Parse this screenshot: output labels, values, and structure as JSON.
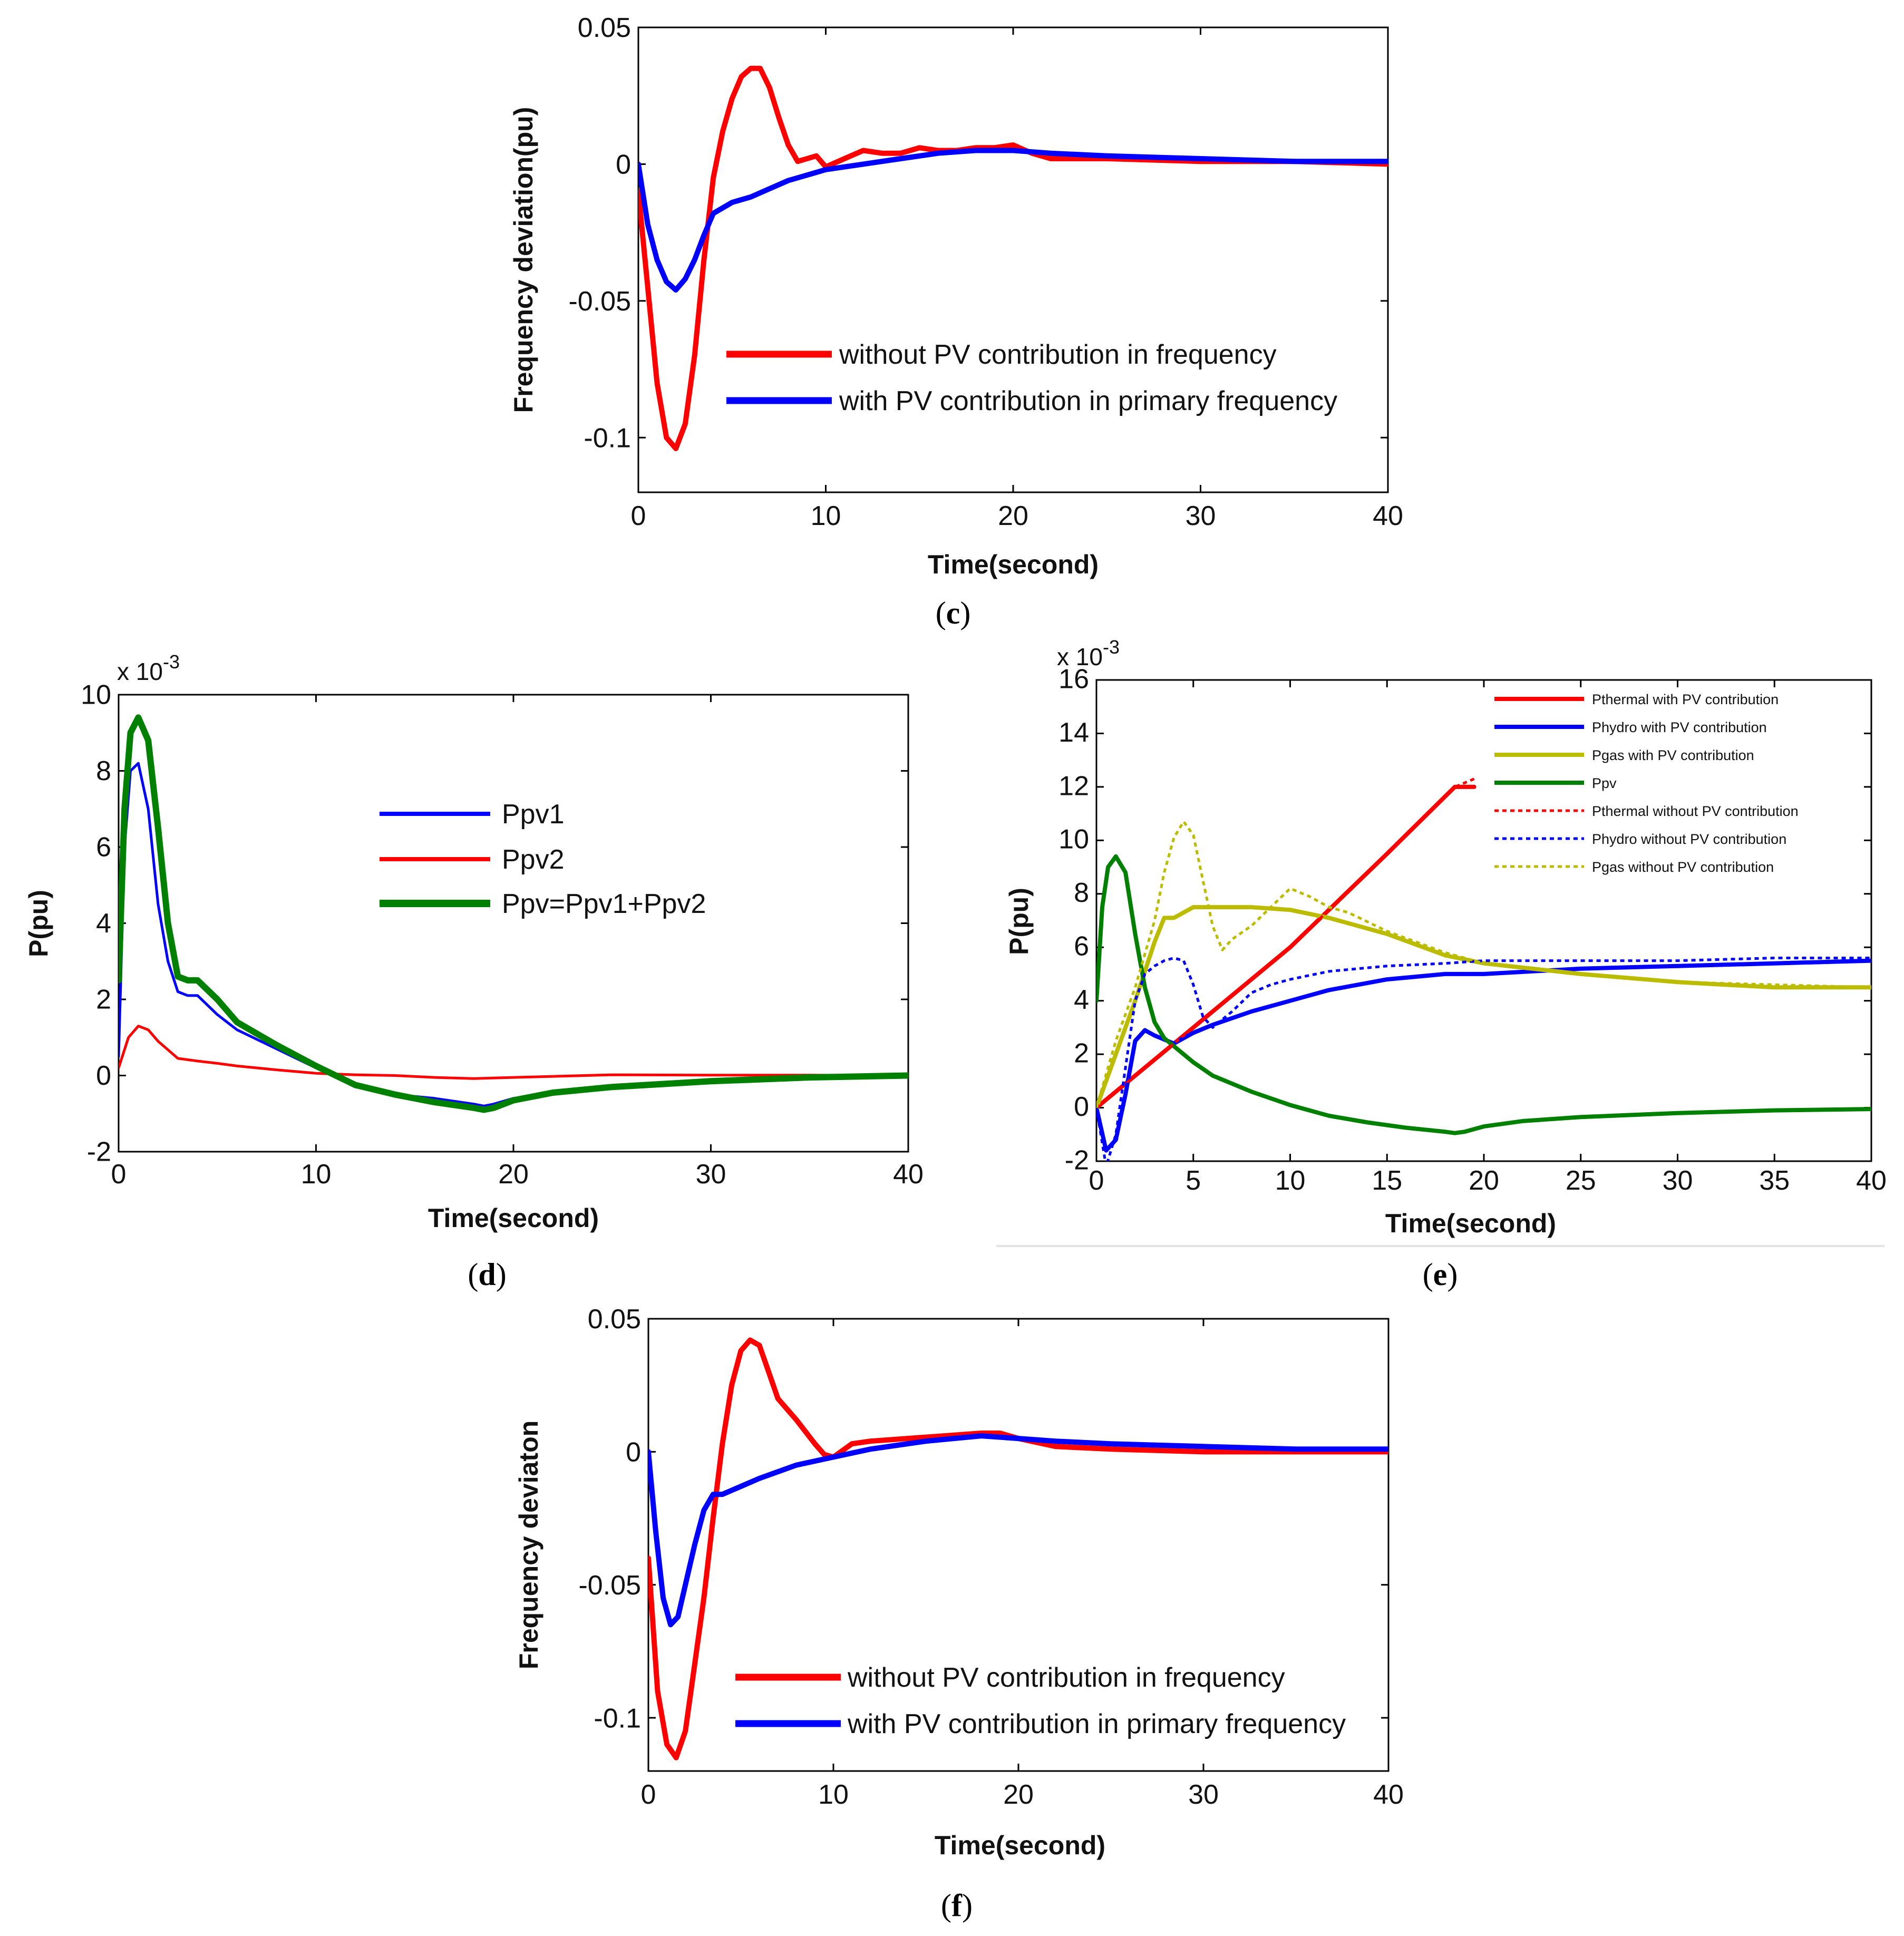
{
  "chart_data": [
    {
      "id": "c",
      "type": "line",
      "caption": "c",
      "xlabel": "Time(second)",
      "ylabel": "Frequency deviation(pu)",
      "xlim": [
        0,
        40
      ],
      "ylim": [
        -0.12,
        0.05
      ],
      "xticks": [
        0,
        10,
        20,
        30,
        40
      ],
      "xtick_labels": [
        "0",
        "10",
        "20",
        "30",
        "40"
      ],
      "yticks": [
        -0.1,
        -0.05,
        0,
        0.05
      ],
      "ytick_labels": [
        "-0.1",
        "-0.05",
        "0",
        "0.05"
      ],
      "legend_position": "bottom-right",
      "series": [
        {
          "name": "without PV contribution in frequency",
          "color": "#ff0000",
          "style": "solid",
          "weight": "thick",
          "x": [
            0,
            0.5,
            1,
            1.5,
            2,
            2.5,
            3,
            3.5,
            4,
            4.5,
            5,
            5.5,
            6,
            6.5,
            7,
            7.5,
            8,
            8.5,
            9,
            9.5,
            10,
            11,
            12,
            13,
            14,
            15,
            16,
            17,
            18,
            19,
            20,
            21,
            22,
            25,
            30,
            35,
            40
          ],
          "y": [
            -0.01,
            -0.045,
            -0.08,
            -0.1,
            -0.104,
            -0.095,
            -0.07,
            -0.035,
            -0.005,
            0.012,
            0.024,
            0.032,
            0.035,
            0.035,
            0.028,
            0.017,
            0.007,
            0.001,
            0.002,
            0.003,
            -0.001,
            0.002,
            0.005,
            0.004,
            0.004,
            0.006,
            0.005,
            0.005,
            0.006,
            0.006,
            0.007,
            0.004,
            0.002,
            0.002,
            0.001,
            0.001,
            0
          ]
        },
        {
          "name": "with PV contribution in primary frequency",
          "color": "#0000ff",
          "style": "solid",
          "weight": "thick",
          "x": [
            0,
            0.5,
            1,
            1.5,
            2,
            2.5,
            3,
            3.5,
            4,
            5,
            6,
            7,
            8,
            9,
            10,
            12,
            14,
            16,
            18,
            20,
            22,
            25,
            30,
            35,
            40
          ],
          "y": [
            0,
            -0.022,
            -0.035,
            -0.043,
            -0.046,
            -0.042,
            -0.035,
            -0.026,
            -0.018,
            -0.014,
            -0.012,
            -0.009,
            -0.006,
            -0.004,
            -0.002,
            0.0,
            0.002,
            0.004,
            0.005,
            0.005,
            0.004,
            0.003,
            0.002,
            0.001,
            0.001
          ]
        }
      ]
    },
    {
      "id": "d",
      "type": "line",
      "caption": "d",
      "xlabel": "Time(second)",
      "ylabel": "P(pu)",
      "y_multiplier_base": "x 10",
      "y_multiplier_exp": "-3",
      "xlim": [
        0,
        40
      ],
      "ylim": [
        -2,
        10
      ],
      "xticks": [
        0,
        10,
        20,
        30,
        40
      ],
      "xtick_labels": [
        "0",
        "10",
        "20",
        "30",
        "40"
      ],
      "yticks": [
        -2,
        0,
        2,
        4,
        6,
        8,
        10
      ],
      "ytick_labels": [
        "-2",
        "0",
        "2",
        "4",
        "6",
        "8",
        "10"
      ],
      "legend_position": "upper-middle",
      "series": [
        {
          "name": "Ppv1",
          "color": "#0000ff",
          "style": "solid",
          "weight": "normal",
          "x": [
            0,
            0.3,
            0.6,
            1,
            1.5,
            2,
            2.5,
            3,
            3.5,
            4,
            5,
            6,
            8,
            10,
            12,
            14,
            16,
            18,
            18.5,
            19,
            20,
            22,
            25,
            30,
            35,
            40
          ],
          "y": [
            0.5,
            6,
            8,
            8.2,
            7,
            4.5,
            3,
            2.2,
            2.1,
            2.1,
            1.6,
            1.2,
            0.7,
            0.2,
            -0.3,
            -0.5,
            -0.6,
            -0.75,
            -0.8,
            -0.75,
            -0.6,
            -0.45,
            -0.3,
            -0.15,
            -0.05,
            0
          ]
        },
        {
          "name": "Ppv2",
          "color": "#ff0000",
          "style": "solid",
          "weight": "normal",
          "x": [
            0,
            0.5,
            1,
            1.5,
            2,
            3,
            4,
            5,
            6,
            8,
            10,
            12,
            14,
            16,
            18,
            20,
            25,
            30,
            35,
            40
          ],
          "y": [
            0.2,
            1.0,
            1.3,
            1.2,
            0.9,
            0.45,
            0.38,
            0.32,
            0.25,
            0.15,
            0.06,
            0.02,
            0.0,
            -0.05,
            -0.08,
            -0.05,
            0.02,
            0.01,
            0.01,
            0
          ]
        },
        {
          "name": "Ppv=Ppv1+Ppv2",
          "color": "#008000",
          "style": "solid",
          "weight": "thick",
          "x": [
            0,
            0.3,
            0.6,
            1,
            1.5,
            2,
            2.5,
            3,
            3.5,
            4,
            5,
            6,
            8,
            10,
            12,
            14,
            16,
            18,
            18.5,
            19,
            20,
            22,
            25,
            30,
            35,
            40
          ],
          "y": [
            2.5,
            7,
            9,
            9.4,
            8.8,
            6.5,
            4,
            2.6,
            2.5,
            2.5,
            2.0,
            1.4,
            0.8,
            0.25,
            -0.25,
            -0.5,
            -0.7,
            -0.85,
            -0.9,
            -0.85,
            -0.65,
            -0.45,
            -0.3,
            -0.15,
            -0.05,
            0
          ]
        }
      ]
    },
    {
      "id": "e",
      "type": "line",
      "caption": "e",
      "xlabel": "Time(second)",
      "ylabel": "P(pu)",
      "y_multiplier_base": "x 10",
      "y_multiplier_exp": "-3",
      "xlim": [
        0,
        40
      ],
      "ylim": [
        -2,
        16
      ],
      "xticks": [
        0,
        5,
        10,
        15,
        20,
        25,
        30,
        35,
        40
      ],
      "xtick_labels": [
        "0",
        "5",
        "10",
        "15",
        "20",
        "25",
        "30",
        "35",
        "40"
      ],
      "yticks": [
        -2,
        0,
        2,
        4,
        6,
        8,
        10,
        12,
        14,
        16
      ],
      "ytick_labels": [
        "-2",
        "0",
        "2",
        "4",
        "6",
        "8",
        "10",
        "12",
        "14",
        "16"
      ],
      "legend_position": "top-right",
      "series": [
        {
          "name": "Pthermal with PV contribution",
          "color": "#ff0000",
          "style": "solid",
          "weight": "thick",
          "x": [
            0,
            5,
            10,
            15,
            18.5,
            19.5
          ],
          "y": [
            0,
            3,
            6,
            9.5,
            12,
            12
          ]
        },
        {
          "name": "Phydro with PV contribution",
          "color": "#0000ff",
          "style": "solid",
          "weight": "thick",
          "x": [
            0,
            0.5,
            1,
            1.5,
            2,
            2.5,
            3,
            4,
            5,
            6,
            8,
            10,
            12,
            15,
            18,
            20,
            25,
            30,
            35,
            40
          ],
          "y": [
            0,
            -1.6,
            -1.2,
            0.5,
            2.5,
            2.9,
            2.7,
            2.4,
            2.8,
            3.1,
            3.6,
            4.0,
            4.4,
            4.8,
            5.0,
            5.0,
            5.2,
            5.3,
            5.4,
            5.5
          ]
        },
        {
          "name": "Pgas with PV contribution",
          "color": "#bbbb00",
          "style": "solid",
          "weight": "thick",
          "x": [
            0,
            1,
            2,
            3,
            3.5,
            4,
            4.5,
            5,
            6,
            8,
            10,
            12,
            15,
            18,
            20,
            25,
            30,
            35,
            40
          ],
          "y": [
            0,
            2,
            4,
            6.2,
            7.1,
            7.1,
            7.3,
            7.5,
            7.5,
            7.5,
            7.4,
            7.1,
            6.5,
            5.7,
            5.4,
            5.0,
            4.7,
            4.5,
            4.5
          ]
        },
        {
          "name": "Ppv",
          "color": "#008000",
          "style": "solid",
          "weight": "thick",
          "x": [
            0,
            0.3,
            0.6,
            1,
            1.5,
            2,
            2.5,
            3,
            3.5,
            4,
            5,
            6,
            8,
            10,
            12,
            14,
            16,
            18,
            18.5,
            19,
            20,
            22,
            25,
            30,
            35,
            40
          ],
          "y": [
            4,
            7.5,
            9,
            9.4,
            8.8,
            6.5,
            4.5,
            3.2,
            2.6,
            2.3,
            1.7,
            1.2,
            0.6,
            0.1,
            -0.3,
            -0.55,
            -0.75,
            -0.9,
            -0.95,
            -0.9,
            -0.7,
            -0.5,
            -0.35,
            -0.2,
            -0.1,
            -0.05
          ]
        },
        {
          "name": "Pthermal without PV contribution",
          "color": "#ff0000",
          "style": "dotted",
          "weight": "normal",
          "x": [
            0,
            5,
            10,
            15,
            18.5,
            19.5
          ],
          "y": [
            0,
            3,
            6,
            9.5,
            12,
            12.3
          ]
        },
        {
          "name": "Phydro without PV contribution",
          "color": "#0000ff",
          "style": "dotted",
          "weight": "normal",
          "x": [
            0,
            0.5,
            1,
            1.5,
            2,
            2.5,
            3,
            3.5,
            4,
            4.5,
            5,
            5.5,
            6,
            7,
            8,
            9,
            10,
            12,
            15,
            18,
            20,
            25,
            30,
            35,
            40
          ],
          "y": [
            0,
            -2.2,
            -1,
            1.5,
            4,
            5,
            5.3,
            5.5,
            5.6,
            5.5,
            4.6,
            3.4,
            3.0,
            3.6,
            4.3,
            4.6,
            4.8,
            5.1,
            5.3,
            5.4,
            5.5,
            5.5,
            5.5,
            5.6,
            5.6
          ]
        },
        {
          "name": "Pgas without PV contribution",
          "color": "#bbbb00",
          "style": "dotted",
          "weight": "normal",
          "x": [
            0,
            1,
            2,
            3,
            3.5,
            4,
            4.5,
            5,
            5.5,
            6,
            6.5,
            7,
            8,
            9,
            10,
            11,
            12,
            13,
            15,
            18,
            20,
            25,
            30,
            35,
            40
          ],
          "y": [
            0,
            2.5,
            4.5,
            7,
            8.8,
            10.1,
            10.7,
            10.2,
            8.5,
            6.8,
            5.9,
            6.3,
            6.8,
            7.5,
            8.2,
            7.9,
            7.5,
            7.3,
            6.6,
            5.8,
            5.4,
            5.0,
            4.7,
            4.6,
            4.5
          ]
        }
      ]
    },
    {
      "id": "f",
      "type": "line",
      "caption": "f",
      "xlabel": "Time(second)",
      "ylabel": "Frequency deviaton",
      "xlim": [
        0,
        40
      ],
      "ylim": [
        -0.12,
        0.05
      ],
      "xticks": [
        0,
        10,
        20,
        30,
        40
      ],
      "xtick_labels": [
        "0",
        "10",
        "20",
        "30",
        "40"
      ],
      "yticks": [
        -0.1,
        -0.05,
        0,
        0.05
      ],
      "ytick_labels": [
        "-0.1",
        "-0.05",
        "0",
        "0.05"
      ],
      "legend_position": "bottom-right",
      "series": [
        {
          "name": "without PV contribution in frequency",
          "color": "#ff0000",
          "style": "solid",
          "weight": "thick",
          "x": [
            0,
            0.5,
            1,
            1.5,
            2,
            2.5,
            3,
            3.5,
            4,
            4.5,
            5,
            5.5,
            6,
            6.5,
            7,
            8,
            9,
            9.5,
            10,
            11,
            12,
            14,
            16,
            18,
            19,
            20,
            22,
            25,
            30,
            35,
            40
          ],
          "y": [
            -0.04,
            -0.09,
            -0.11,
            -0.115,
            -0.105,
            -0.08,
            -0.055,
            -0.025,
            0.003,
            0.025,
            0.038,
            0.042,
            0.04,
            0.03,
            0.02,
            0.012,
            0.003,
            -0.001,
            -0.002,
            0.003,
            0.004,
            0.005,
            0.006,
            0.007,
            0.007,
            0.005,
            0.002,
            0.001,
            0.0,
            0.0,
            0.0
          ]
        },
        {
          "name": "with PV contribution in primary frequency",
          "color": "#0000ff",
          "style": "solid",
          "weight": "thick",
          "x": [
            0,
            0.4,
            0.8,
            1.2,
            1.6,
            2,
            2.5,
            3,
            3.5,
            4,
            5,
            6,
            8,
            10,
            12,
            15,
            18,
            20,
            22,
            25,
            30,
            35,
            40
          ],
          "y": [
            0,
            -0.03,
            -0.055,
            -0.065,
            -0.062,
            -0.05,
            -0.035,
            -0.022,
            -0.016,
            -0.016,
            -0.013,
            -0.01,
            -0.005,
            -0.002,
            0.001,
            0.004,
            0.006,
            0.005,
            0.004,
            0.003,
            0.002,
            0.001,
            0.001
          ]
        }
      ]
    }
  ]
}
